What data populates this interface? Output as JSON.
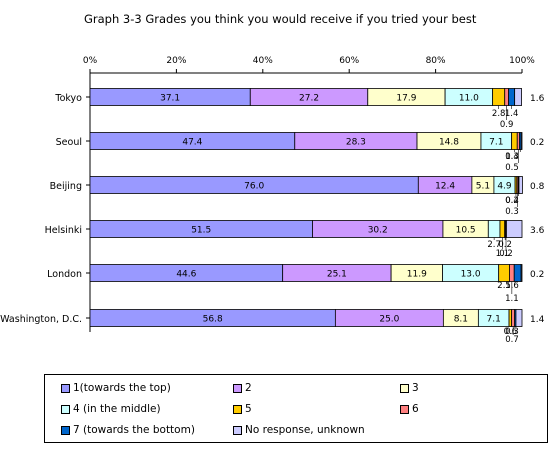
{
  "chart_data": {
    "type": "bar",
    "orientation": "horizontal",
    "stacked": true,
    "title": "Graph 3-3  Grades you think you would receive if you tried your best",
    "x_ticks": [
      "0%",
      "20%",
      "40%",
      "60%",
      "80%",
      "100%"
    ],
    "xlim": [
      0,
      100
    ],
    "categories": [
      "Tokyo",
      "Seoul",
      "Beijing",
      "Helsinki",
      "London",
      "Washington, D.C."
    ],
    "series": [
      {
        "name": "1(towards the top)",
        "color": "#9999ff",
        "values": [
          37.1,
          47.4,
          76.0,
          51.5,
          44.6,
          56.8
        ]
      },
      {
        "name": "2",
        "color": "#cc99ff",
        "values": [
          27.2,
          28.3,
          12.4,
          30.2,
          25.1,
          25.0
        ]
      },
      {
        "name": "3",
        "color": "#ffffcc",
        "values": [
          17.9,
          14.8,
          5.1,
          10.5,
          11.9,
          8.1
        ]
      },
      {
        "name": "4 (in the middle)",
        "color": "#ccffff",
        "values": [
          11.0,
          7.1,
          4.9,
          2.7,
          13.0,
          7.1
        ]
      },
      {
        "name": "5",
        "color": "#ffcc00",
        "values": [
          2.8,
          1.3,
          0.4,
          1.1,
          2.5,
          0.6
        ]
      },
      {
        "name": "6",
        "color": "#ff8080",
        "values": [
          0.9,
          0.5,
          0.3,
          0.2,
          1.1,
          0.7
        ]
      },
      {
        "name": "7 (towards the bottom)",
        "color": "#0066cc",
        "values": [
          1.4,
          0.4,
          0.2,
          0.2,
          1.6,
          0.3
        ]
      },
      {
        "name": "No response, unknown",
        "color": "#ccccff",
        "values": [
          1.6,
          0.2,
          0.8,
          3.6,
          0.2,
          1.4
        ]
      }
    ],
    "legend_position": "bottom",
    "grid": false
  }
}
